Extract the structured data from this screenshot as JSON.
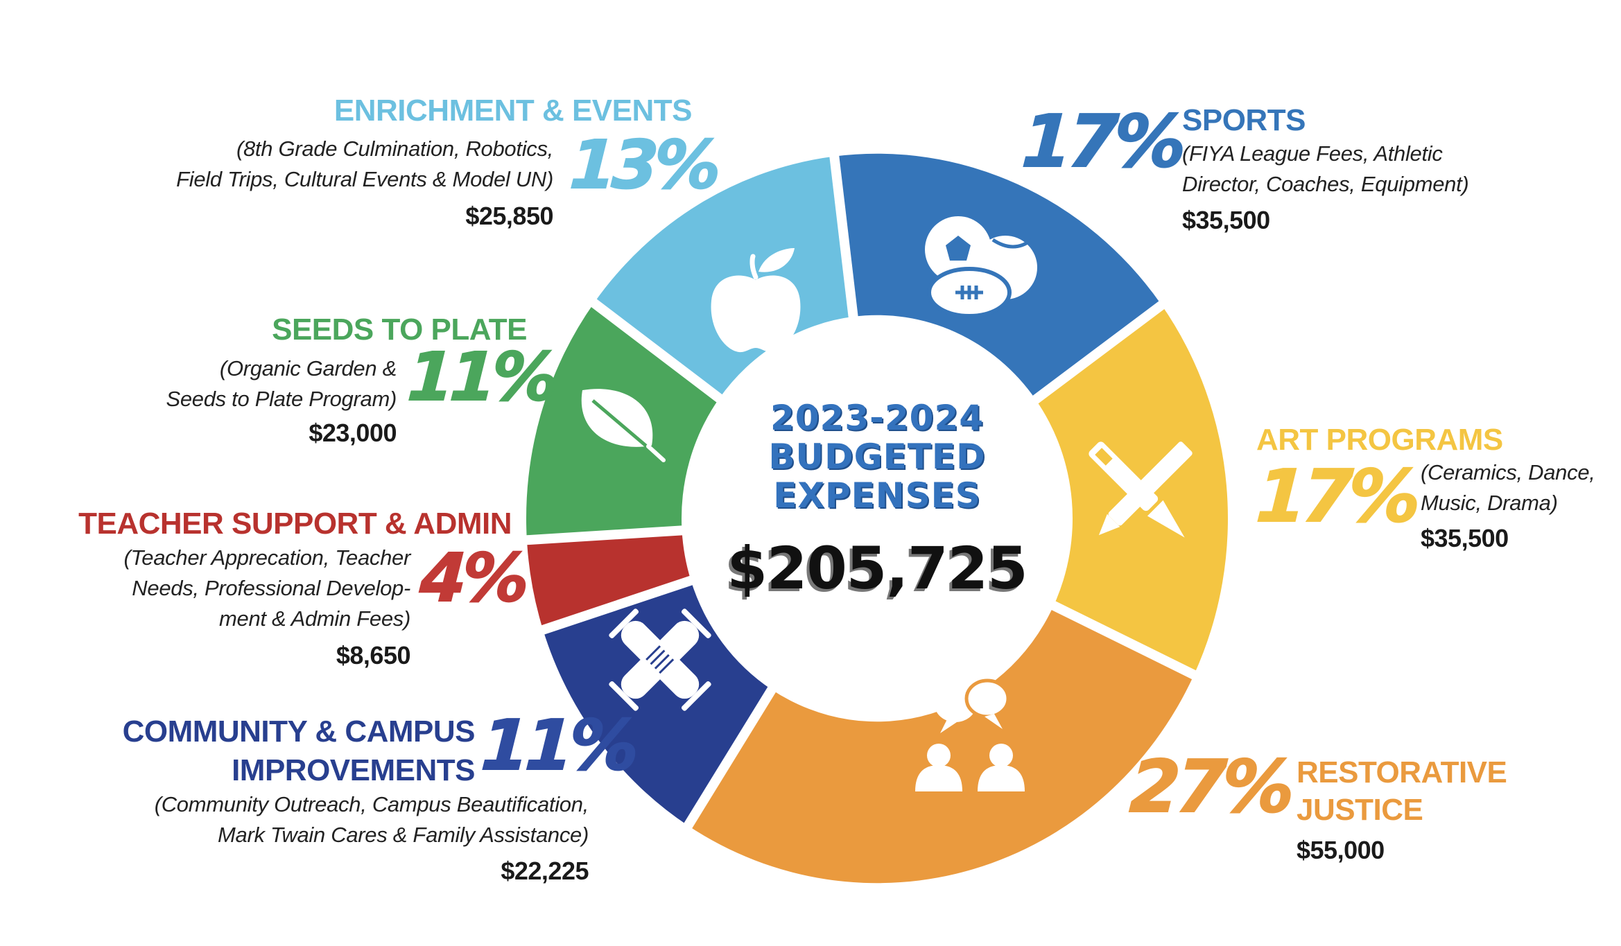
{
  "chart_data": {
    "type": "pie",
    "variant": "donut",
    "title": "2023-2024 Budgeted Expenses",
    "total": "$205,725",
    "total_value": 205725,
    "legend": "labels around ring",
    "slices": [
      {
        "key": "sports",
        "label": "SPORTS",
        "percent": 17,
        "percent_label": "17%",
        "amount": 35500,
        "amount_label": "$35,500",
        "description": [
          "(FIYA League Fees, Athletic",
          "Director, Coaches, Equipment)"
        ],
        "color": "#3575b9",
        "icon": "sports-balls-icon"
      },
      {
        "key": "art",
        "label": "ART PROGRAMS",
        "percent": 17,
        "percent_label": "17%",
        "amount": 35500,
        "amount_label": "$35,500",
        "description": [
          "(Ceramics, Dance,",
          "Music, Drama)"
        ],
        "color": "#f4c542",
        "icon": "pencil-brush-icon"
      },
      {
        "key": "restorative",
        "label_lines": [
          "RESTORATIVE",
          "JUSTICE"
        ],
        "label": "RESTORATIVE JUSTICE",
        "percent": 27,
        "percent_label": "27%",
        "amount": 55000,
        "amount_label": "$55,000",
        "description": [],
        "color": "#ea9a3e",
        "icon": "people-conversation-icon"
      },
      {
        "key": "community",
        "label_lines": [
          "COMMUNITY & CAMPUS",
          "IMPROVEMENTS"
        ],
        "label": "COMMUNITY & CAMPUS IMPROVEMENTS",
        "percent": 11,
        "percent_label": "11%",
        "amount": 22225,
        "amount_label": "$22,225",
        "description": [
          "(Community Outreach, Campus Beautification,",
          "Mark Twain Cares & Family Assistance)"
        ],
        "color": "#283f8f",
        "icon": "stacked-hands-icon"
      },
      {
        "key": "teacher",
        "label": "TEACHER SUPPORT & ADMIN",
        "percent": 4,
        "percent_label": "4%",
        "amount": 8650,
        "amount_label": "$8,650",
        "description": [
          "(Teacher Apprecation, Teacher",
          "Needs, Professional Develop-",
          "ment & Admin Fees)"
        ],
        "color": "#b8322e",
        "icon": ""
      },
      {
        "key": "seeds",
        "label": "SEEDS TO PLATE",
        "percent": 11,
        "percent_label": "11%",
        "amount": 23000,
        "amount_label": "$23,000",
        "description": [
          "(Organic Garden &",
          "Seeds to Plate Program)"
        ],
        "color": "#4ba65c",
        "icon": "leaf-icon"
      },
      {
        "key": "enrichment",
        "label": "ENRICHMENT & EVENTS",
        "percent": 13,
        "percent_label": "13%",
        "amount": 25850,
        "amount_label": "$25,850",
        "description": [
          "(8th Grade Culmination, Robotics,",
          "Field Trips, Cultural Events & Model UN)"
        ],
        "color": "#6cc0e0",
        "icon": "apple-icon"
      }
    ]
  },
  "center": {
    "title_lines": [
      "2023-2024",
      "BUDGETED",
      "EXPENSES"
    ],
    "title_color": "#3372bd",
    "total": "$205,725"
  }
}
